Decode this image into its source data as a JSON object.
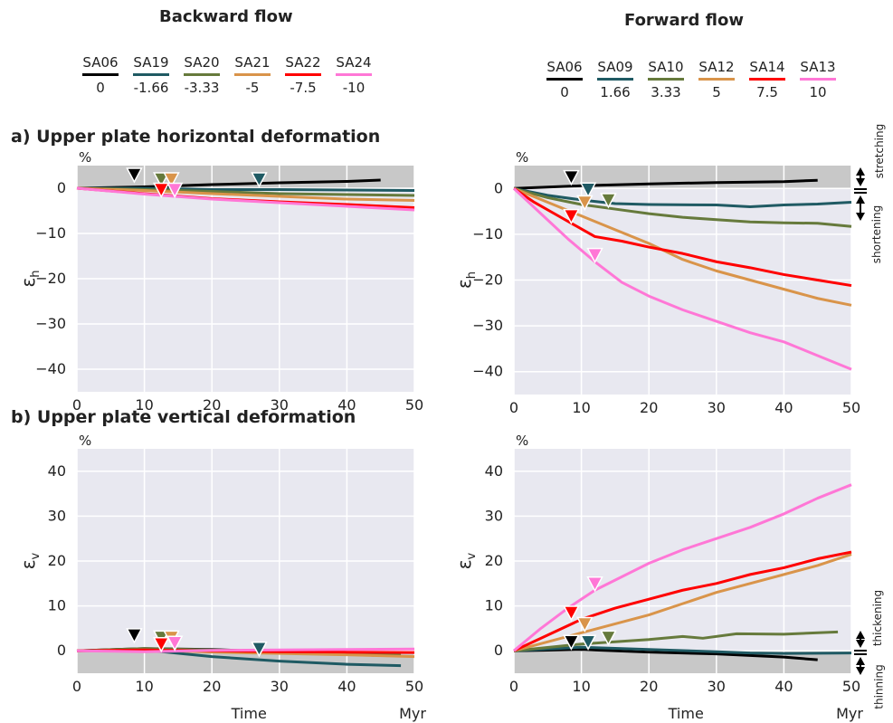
{
  "headers": {
    "backward": "Backward flow",
    "forward": "Forward flow"
  },
  "sections": {
    "a": "a) Upper plate horizontal deformation",
    "b": "b) Upper plate vertical deformation"
  },
  "legend_backward": [
    {
      "name": "SA06",
      "value": "0",
      "color": "#000000"
    },
    {
      "name": "SA19",
      "value": "-1.66",
      "color": "#1f5a63"
    },
    {
      "name": "SA20",
      "value": "-3.33",
      "color": "#667a3c"
    },
    {
      "name": "SA21",
      "value": "-5",
      "color": "#d9944a"
    },
    {
      "name": "SA22",
      "value": "-7.5",
      "color": "#ff0000"
    },
    {
      "name": "SA24",
      "value": "-10",
      "color": "#ff77d6"
    }
  ],
  "legend_forward": [
    {
      "name": "SA06",
      "value": "0",
      "color": "#000000"
    },
    {
      "name": "SA09",
      "value": "1.66",
      "color": "#1f5a63"
    },
    {
      "name": "SA10",
      "value": "3.33",
      "color": "#667a3c"
    },
    {
      "name": "SA12",
      "value": "5",
      "color": "#d9944a"
    },
    {
      "name": "SA14",
      "value": "7.5",
      "color": "#ff0000"
    },
    {
      "name": "SA13",
      "value": "10",
      "color": "#ff77d6"
    }
  ],
  "side_labels": {
    "stretching": "stretching",
    "shortening": "shortening",
    "thickening": "thickening",
    "thinning": "thinning"
  },
  "colors": {
    "panel_bg": "#e8e8f0",
    "band": "#c8c8c8",
    "grid": "#ffffff"
  },
  "chart_data": [
    {
      "type": "line",
      "panel": "backward-horizontal",
      "unit": "%",
      "ylabel": "εh",
      "xlabel": "",
      "xunit": "",
      "xlim": [
        0,
        50
      ],
      "ylim": [
        -45,
        5
      ],
      "xticks": [
        0,
        10,
        20,
        30,
        40,
        50
      ],
      "yticks": [
        0,
        -10,
        -20,
        -30,
        -40
      ],
      "shaded_band": [
        0,
        5
      ],
      "grid": true,
      "series": [
        {
          "name": "SA06",
          "color": "#000000",
          "x": [
            0,
            10,
            20,
            30,
            40,
            45
          ],
          "y": [
            0,
            0.3,
            0.8,
            1.2,
            1.5,
            1.8
          ],
          "marker": [
            8.5,
            3
          ]
        },
        {
          "name": "SA19",
          "color": "#1f5a63",
          "x": [
            0,
            10,
            20,
            30,
            40,
            50
          ],
          "y": [
            0,
            0,
            -0.3,
            -0.3,
            -0.4,
            -0.5
          ],
          "marker": [
            27,
            2
          ]
        },
        {
          "name": "SA20",
          "color": "#667a3c",
          "x": [
            0,
            10,
            20,
            30,
            40,
            50
          ],
          "y": [
            0,
            -0.3,
            -0.7,
            -1.2,
            -1.4,
            -1.6
          ],
          "marker": [
            12.5,
            2
          ]
        },
        {
          "name": "SA21",
          "color": "#d9944a",
          "x": [
            0,
            10,
            20,
            30,
            40,
            50
          ],
          "y": [
            0,
            -0.5,
            -1.2,
            -1.8,
            -2.4,
            -2.7
          ],
          "marker": [
            14,
            2
          ]
        },
        {
          "name": "SA22",
          "color": "#ff0000",
          "x": [
            0,
            10,
            20,
            30,
            40,
            50
          ],
          "y": [
            0,
            -1.2,
            -2.3,
            -3.0,
            -3.6,
            -4.3
          ],
          "marker": [
            12.5,
            -0.3
          ]
        },
        {
          "name": "SA24",
          "color": "#ff77d6",
          "x": [
            0,
            10,
            20,
            30,
            40,
            50
          ],
          "y": [
            0,
            -1.3,
            -2.4,
            -3.2,
            -4.0,
            -4.8
          ],
          "marker": [
            14.5,
            -0.3
          ]
        }
      ]
    },
    {
      "type": "line",
      "panel": "forward-horizontal",
      "unit": "%",
      "ylabel": "εh",
      "xlabel": "",
      "xunit": "",
      "xlim": [
        0,
        50
      ],
      "ylim": [
        -45,
        5
      ],
      "xticks": [
        0,
        10,
        20,
        30,
        40,
        50
      ],
      "yticks": [
        0,
        -10,
        -20,
        -30,
        -40
      ],
      "shaded_band": [
        0,
        5
      ],
      "grid": true,
      "series": [
        {
          "name": "SA06",
          "color": "#000000",
          "x": [
            0,
            10,
            20,
            30,
            40,
            45
          ],
          "y": [
            0,
            0.6,
            1.0,
            1.3,
            1.5,
            1.8
          ],
          "marker": [
            8.5,
            2.5
          ]
        },
        {
          "name": "SA09",
          "color": "#1f5a63",
          "x": [
            0,
            5,
            10,
            15,
            20,
            30,
            35,
            40,
            45,
            50
          ],
          "y": [
            0,
            -1.5,
            -2.5,
            -3.3,
            -3.5,
            -3.6,
            -4.0,
            -3.6,
            -3.4,
            -3.0
          ],
          "marker": [
            11,
            -0.2
          ]
        },
        {
          "name": "SA10",
          "color": "#667a3c",
          "x": [
            0,
            5,
            10,
            15,
            20,
            25,
            30,
            35,
            40,
            45,
            50
          ],
          "y": [
            0,
            -2.0,
            -3.5,
            -4.5,
            -5.5,
            -6.3,
            -6.8,
            -7.3,
            -7.5,
            -7.6,
            -8.3
          ],
          "marker": [
            14,
            -2.5
          ]
        },
        {
          "name": "SA12",
          "color": "#d9944a",
          "x": [
            0,
            5,
            10,
            15,
            20,
            25,
            30,
            35,
            40,
            45,
            50
          ],
          "y": [
            0,
            -3,
            -6,
            -9,
            -12,
            -15.5,
            -18,
            -20,
            -22,
            -24,
            -25.5
          ],
          "marker": [
            10.5,
            -3
          ]
        },
        {
          "name": "SA14",
          "color": "#ff0000",
          "x": [
            0,
            3,
            6,
            9,
            12,
            16,
            20,
            25,
            30,
            35,
            40,
            45,
            50
          ],
          "y": [
            0,
            -3,
            -5.5,
            -8,
            -10.5,
            -11.5,
            -12.8,
            -14.2,
            -16,
            -17.3,
            -18.8,
            -20,
            -21.2
          ],
          "marker": [
            8.5,
            -6
          ]
        },
        {
          "name": "SA13",
          "color": "#ff77d6",
          "x": [
            0,
            4,
            8,
            12,
            16,
            20,
            25,
            30,
            35,
            40,
            45,
            50
          ],
          "y": [
            0,
            -5.5,
            -11,
            -16,
            -20.5,
            -23.5,
            -26.5,
            -29,
            -31.5,
            -33.5,
            -36.5,
            -39.5
          ],
          "marker": [
            12,
            -14.5
          ]
        }
      ]
    },
    {
      "type": "line",
      "panel": "backward-vertical",
      "unit": "%",
      "ylabel": "εv",
      "xlabel": "Time",
      "xunit": "Myr",
      "xlim": [
        0,
        50
      ],
      "ylim": [
        -5,
        45
      ],
      "xticks": [
        0,
        10,
        20,
        30,
        40,
        50
      ],
      "yticks": [
        0,
        10,
        20,
        30,
        40
      ],
      "shaded_band": [
        -5,
        0
      ],
      "grid": true,
      "series": [
        {
          "name": "SA06",
          "color": "#000000",
          "x": [
            0,
            10,
            20,
            30,
            40,
            44
          ],
          "y": [
            0,
            0.5,
            0.3,
            -0.3,
            -0.8,
            -1.0
          ],
          "marker": [
            8.5,
            3.5
          ]
        },
        {
          "name": "SA19",
          "color": "#1f5a63",
          "x": [
            0,
            10,
            20,
            30,
            40,
            48
          ],
          "y": [
            0,
            0.2,
            -1.3,
            -2.3,
            -3.0,
            -3.3
          ],
          "marker": [
            27,
            0.5
          ]
        },
        {
          "name": "SA20",
          "color": "#667a3c",
          "x": [
            0,
            10,
            20,
            30,
            40,
            48
          ],
          "y": [
            0,
            0.5,
            0.2,
            -0.2,
            -0.5,
            -0.7
          ],
          "marker": [
            12.5,
            3
          ]
        },
        {
          "name": "SA21",
          "color": "#d9944a",
          "x": [
            0,
            10,
            20,
            30,
            40,
            50
          ],
          "y": [
            0,
            0.2,
            -0.3,
            -0.6,
            -0.9,
            -1.3
          ],
          "marker": [
            14,
            3
          ]
        },
        {
          "name": "SA22",
          "color": "#ff0000",
          "x": [
            0,
            10,
            20,
            30,
            40,
            50
          ],
          "y": [
            0,
            0.2,
            0,
            -0.2,
            -0.3,
            -0.4
          ],
          "marker": [
            12.5,
            1.5
          ]
        },
        {
          "name": "SA24",
          "color": "#ff77d6",
          "x": [
            0,
            10,
            20,
            30,
            40,
            50
          ],
          "y": [
            0,
            -0.2,
            0.1,
            0.2,
            0.3,
            0.4
          ],
          "marker": [
            14.5,
            1.8
          ]
        }
      ]
    },
    {
      "type": "line",
      "panel": "forward-vertical",
      "unit": "%",
      "ylabel": "εv",
      "xlabel": "Time",
      "xunit": "Myr",
      "xlim": [
        0,
        50
      ],
      "ylim": [
        -5,
        45
      ],
      "xticks": [
        0,
        10,
        20,
        30,
        40,
        50
      ],
      "yticks": [
        0,
        10,
        20,
        30,
        40
      ],
      "shaded_band": [
        -5,
        0
      ],
      "grid": true,
      "series": [
        {
          "name": "SA06",
          "color": "#000000",
          "x": [
            0,
            10,
            20,
            30,
            40,
            45
          ],
          "y": [
            0,
            0.3,
            -0.3,
            -0.7,
            -1.4,
            -2.0
          ],
          "marker": [
            8.5,
            2
          ]
        },
        {
          "name": "SA09",
          "color": "#1f5a63",
          "x": [
            0,
            10,
            20,
            30,
            35,
            40,
            50
          ],
          "y": [
            0,
            0.8,
            0.3,
            -0.2,
            -0.5,
            -0.6,
            -0.5
          ],
          "marker": [
            11,
            2
          ]
        },
        {
          "name": "SA10",
          "color": "#667a3c",
          "x": [
            0,
            10,
            20,
            25,
            28,
            33,
            40,
            48
          ],
          "y": [
            0,
            1.5,
            2.5,
            3.2,
            2.8,
            3.8,
            3.7,
            4.2
          ],
          "marker": [
            14,
            3
          ]
        },
        {
          "name": "SA12",
          "color": "#d9944a",
          "x": [
            0,
            5,
            10,
            15,
            20,
            25,
            30,
            35,
            40,
            45,
            50
          ],
          "y": [
            0,
            2,
            4,
            6,
            8,
            10.5,
            13,
            15,
            17,
            19,
            21.5
          ],
          "marker": [
            10.5,
            6
          ]
        },
        {
          "name": "SA14",
          "color": "#ff0000",
          "x": [
            0,
            5,
            10,
            15,
            20,
            25,
            30,
            35,
            40,
            45,
            50
          ],
          "y": [
            0,
            3.5,
            7,
            9.5,
            11.5,
            13.5,
            15,
            17,
            18.5,
            20.5,
            22
          ],
          "marker": [
            8.5,
            8.5
          ]
        },
        {
          "name": "SA13",
          "color": "#ff77d6",
          "x": [
            0,
            4,
            8,
            12,
            16,
            20,
            25,
            30,
            35,
            40,
            45,
            50
          ],
          "y": [
            0,
            5,
            9.5,
            13.5,
            16.5,
            19.5,
            22.5,
            25,
            27.5,
            30.5,
            34,
            37
          ],
          "marker": [
            12,
            15
          ]
        }
      ]
    }
  ]
}
